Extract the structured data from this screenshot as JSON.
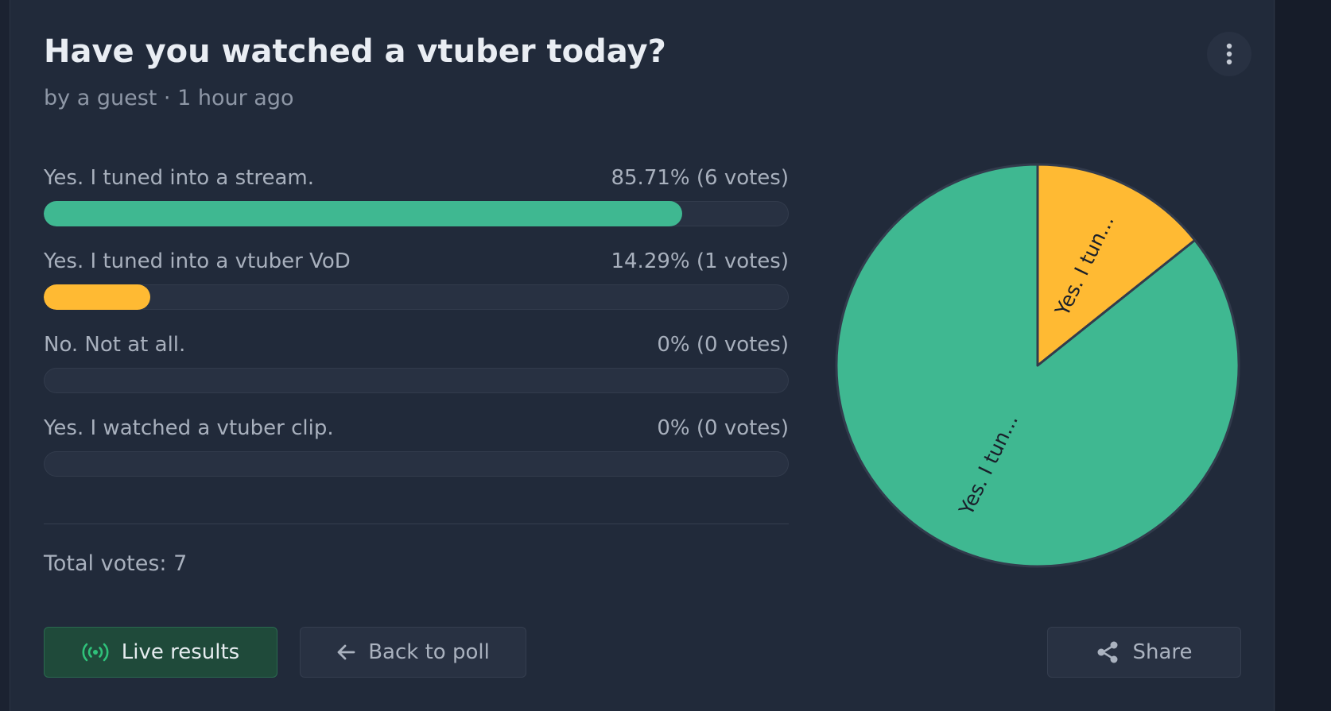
{
  "poll": {
    "title": "Have you watched a vtuber today?",
    "meta": "by a guest · 1 hour ago",
    "menu_icon": "more-vertical-icon"
  },
  "options": [
    {
      "label": "Yes. I tuned into a stream.",
      "result": "85.71% (6 votes)",
      "percent": 85.71,
      "votes": 6,
      "color": "#3fb891"
    },
    {
      "label": "Yes. I tuned into a vtuber VoD",
      "result": "14.29% (1 votes)",
      "percent": 14.29,
      "votes": 1,
      "color": "#ffba33"
    },
    {
      "label": "No. Not at all.",
      "result": "0% (0 votes)",
      "percent": 0,
      "votes": 0,
      "color": "#3fb891"
    },
    {
      "label": "Yes. I watched a vtuber clip.",
      "result": "0% (0 votes)",
      "percent": 0,
      "votes": 0,
      "color": "#3fb891"
    }
  ],
  "total": "Total votes: 7",
  "buttons": {
    "live": {
      "label": "Live results",
      "icon": "broadcast-icon"
    },
    "back": {
      "label": "Back to poll",
      "icon": "arrow-left-icon"
    },
    "share": {
      "label": "Share",
      "icon": "share-icon"
    }
  },
  "chart_data": {
    "type": "pie",
    "labels": [
      "Yes. I tuned into a stream.",
      "Yes. I tuned into a vtuber VoD"
    ],
    "values": [
      6,
      1
    ],
    "colors": [
      "#3fb891",
      "#ffba33"
    ],
    "slice_labels": [
      "Yes. I tun...",
      "Yes. I tun..."
    ]
  }
}
